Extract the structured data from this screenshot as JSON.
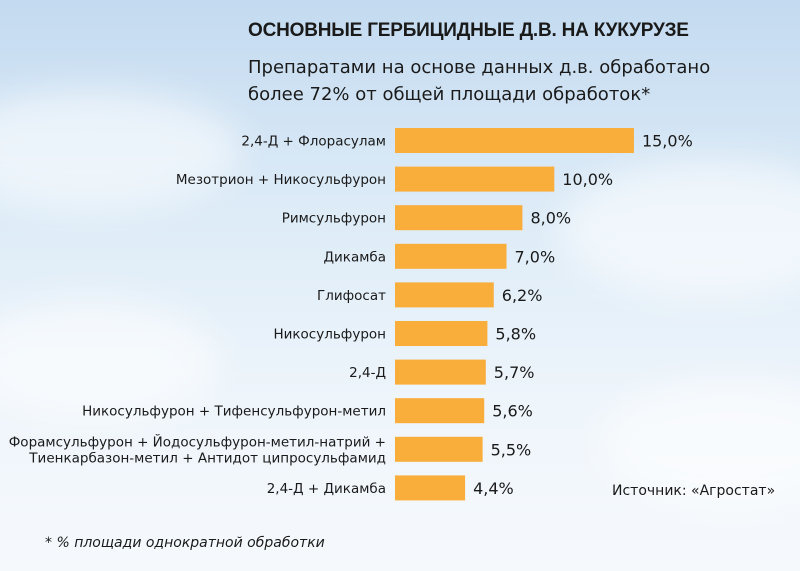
{
  "chart_data": {
    "type": "bar",
    "orientation": "horizontal",
    "title": "ОСНОВНЫЕ ГЕРБИЦИДНЫЕ Д.В. НА КУКУРУЗЕ",
    "subtitle": [
      "Препаратами на основе данных д.в. обработано",
      "более 72% от общей площади обработок*"
    ],
    "categories": [
      [
        "2,4-Д + Флорасулам"
      ],
      [
        "Мезотрион + Никосульфурон"
      ],
      [
        "Римсульфурон"
      ],
      [
        "Дикамба"
      ],
      [
        "Глифосат"
      ],
      [
        "Никосульфурон"
      ],
      [
        "2,4-Д"
      ],
      [
        "Никосульфурон + Тифенсульфурон-метил"
      ],
      [
        "Форамсульфурон + Йодосульфурон-метил-натрий +",
        "Тиенкарбазон-метил + Антидот ципросульфамид"
      ],
      [
        "2,4-Д + Дикамба"
      ]
    ],
    "values": [
      15.0,
      10.0,
      8.0,
      7.0,
      6.2,
      5.8,
      5.7,
      5.6,
      5.5,
      4.4
    ],
    "value_labels": [
      "15,0%",
      "10,0%",
      "8,0%",
      "7,0%",
      "6,2%",
      "5,8%",
      "5,7%",
      "5,6%",
      "5,5%",
      "4,4%"
    ],
    "bar_color": "#f9ad3a",
    "grid": false,
    "legend": "none",
    "source": "Источник: «Агростат»",
    "footnote": "* % площади однократной обработки"
  }
}
